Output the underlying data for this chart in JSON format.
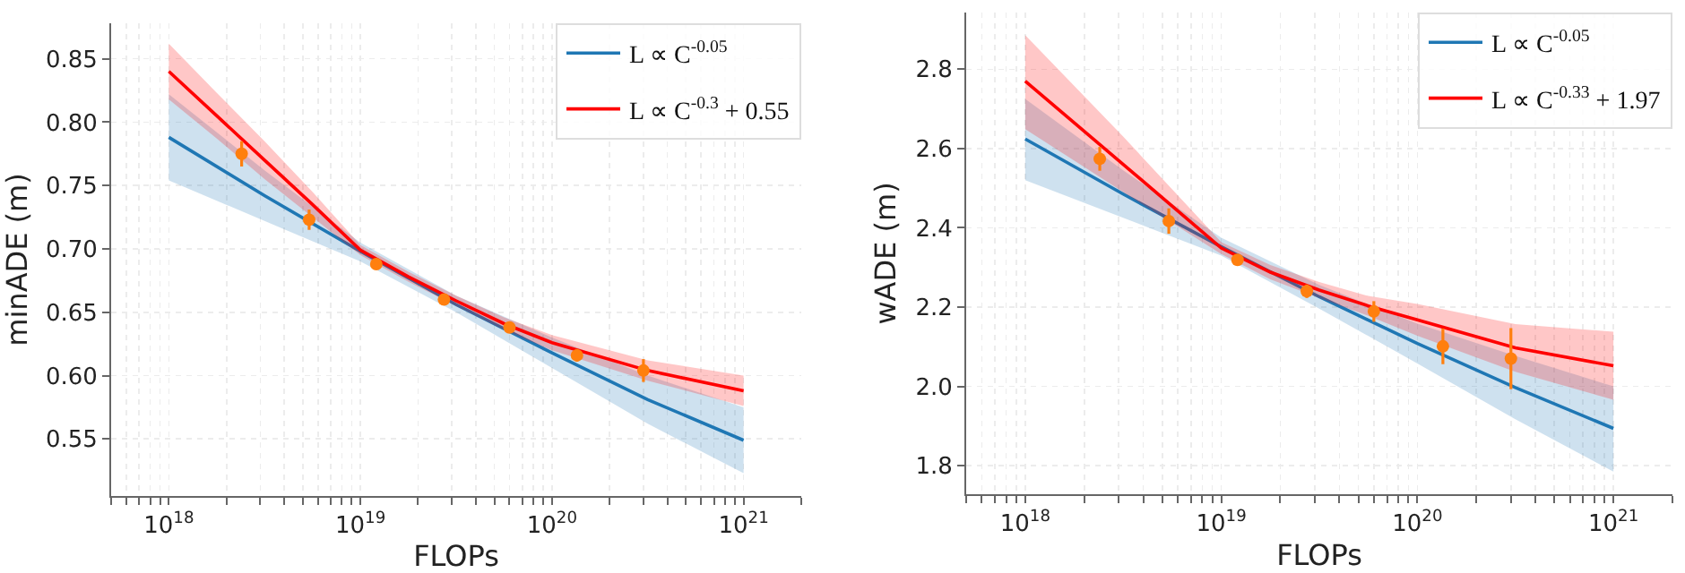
{
  "chart_data": [
    {
      "type": "line",
      "xlabel": "FLOPs",
      "ylabel": "minADE (m)",
      "log": "x",
      "grid": true,
      "legend": "top right",
      "xlim": [
        5e+17,
        2e+21
      ],
      "xticks": [
        {
          "value": 5e+17,
          "label": null
        },
        {
          "value": 6e+17,
          "label": null
        },
        {
          "value": 7e+17,
          "label": null
        },
        {
          "value": 8e+17,
          "label": null
        },
        {
          "value": 9e+17,
          "label": null
        },
        {
          "value": 1e+18,
          "label": "10$^{18}$"
        },
        {
          "value": 2e+18,
          "label": null
        },
        {
          "value": 3e+18,
          "label": null
        },
        {
          "value": 4e+18,
          "label": null
        },
        {
          "value": 5e+18,
          "label": null
        },
        {
          "value": 6e+18,
          "label": null
        },
        {
          "value": 7e+18,
          "label": null
        },
        {
          "value": 8e+18,
          "label": null
        },
        {
          "value": 9e+18,
          "label": null
        },
        {
          "value": 1e+19,
          "label": "10$^{19}$"
        },
        {
          "value": 2e+19,
          "label": null
        },
        {
          "value": 3e+19,
          "label": null
        },
        {
          "value": 4e+19,
          "label": null
        },
        {
          "value": 5e+19,
          "label": null
        },
        {
          "value": 6e+19,
          "label": null
        },
        {
          "value": 7e+19,
          "label": null
        },
        {
          "value": 8e+19,
          "label": null
        },
        {
          "value": 9e+19,
          "label": null
        },
        {
          "value": 1e+20,
          "label": "10$^{20}$"
        },
        {
          "value": 2e+20,
          "label": null
        },
        {
          "value": 3e+20,
          "label": null
        },
        {
          "value": 4e+20,
          "label": null
        },
        {
          "value": 5e+20,
          "label": null
        },
        {
          "value": 6e+20,
          "label": null
        },
        {
          "value": 7e+20,
          "label": null
        },
        {
          "value": 8e+20,
          "label": null
        },
        {
          "value": 9e+20,
          "label": null
        },
        {
          "value": 1e+21,
          "label": "10$^{21}$"
        },
        {
          "value": 2e+21,
          "label": null
        }
      ],
      "ylim": [
        0.505,
        0.878
      ],
      "yticks": [
        0.55,
        {
          "value": 0.6,
          "label": "0.60"
        },
        0.65,
        {
          "value": 0.7,
          "label": "0.70"
        },
        0.75,
        {
          "value": 0.8,
          "label": "0.80"
        },
        0.85
      ],
      "series": [
        {
          "name": "L ∝ C$^{-0.05}$",
          "color": "#1f77b4",
          "marker": "none",
          "x": [
            1e+18,
            3.16e+18,
            1e+19,
            3.16e+19,
            1e+20,
            3.16e+20,
            1e+21
          ],
          "values": [
            0.788,
            0.742,
            0.698,
            0.656,
            0.618,
            0.581,
            0.549
          ],
          "lower": [
            0.754,
            0.722,
            0.69,
            0.65,
            0.606,
            0.562,
            0.523
          ],
          "upper": [
            0.822,
            0.762,
            0.705,
            0.663,
            0.63,
            0.6,
            0.575
          ]
        },
        {
          "name": "L ∝ C$^{-0.3}$ + 0.55",
          "color": "#ff0000",
          "marker": "none",
          "x": [
            1e+18,
            1.78e+18,
            3.16e+18,
            5.62e+18,
            1e+19,
            1.78e+19,
            3.16e+19,
            5.62e+19,
            1e+20,
            3.16e+20,
            1e+21
          ],
          "values": [
            0.84,
            0.805,
            0.77,
            0.735,
            0.699,
            0.678,
            0.659,
            0.641,
            0.626,
            0.604,
            0.588
          ],
          "lower": [
            0.818,
            0.787,
            0.755,
            0.725,
            0.695,
            0.674,
            0.655,
            0.636,
            0.62,
            0.596,
            0.576
          ],
          "upper": [
            0.862,
            0.823,
            0.785,
            0.745,
            0.703,
            0.682,
            0.663,
            0.646,
            0.632,
            0.612,
            0.6
          ]
        },
        {
          "type": "scatter",
          "color": "#ff7f0e",
          "marker": "circle",
          "x": [
            2.4e+18,
            5.4e+18,
            1.21e+19,
            2.73e+19,
            6e+19,
            1.35e+20,
            3e+20
          ],
          "values": [
            0.775,
            0.723,
            0.688,
            0.66,
            0.638,
            0.616,
            0.604
          ],
          "errors": [
            0.01,
            0.008,
            0.003,
            0.002,
            0.003,
            0.005,
            0.009
          ]
        }
      ]
    },
    {
      "type": "line",
      "xlabel": "FLOPs",
      "ylabel": "wADE (m)",
      "log": "x",
      "grid": true,
      "legend": "top right",
      "xlim": [
        5e+17,
        2e+21
      ],
      "xticks": [
        {
          "value": 5e+17,
          "label": null
        },
        {
          "value": 6e+17,
          "label": null
        },
        {
          "value": 7e+17,
          "label": null
        },
        {
          "value": 8e+17,
          "label": null
        },
        {
          "value": 9e+17,
          "label": null
        },
        {
          "value": 1e+18,
          "label": "10$^{18}$"
        },
        {
          "value": 2e+18,
          "label": null
        },
        {
          "value": 3e+18,
          "label": null
        },
        {
          "value": 4e+18,
          "label": null
        },
        {
          "value": 5e+18,
          "label": null
        },
        {
          "value": 6e+18,
          "label": null
        },
        {
          "value": 7e+18,
          "label": null
        },
        {
          "value": 8e+18,
          "label": null
        },
        {
          "value": 9e+18,
          "label": null
        },
        {
          "value": 1e+19,
          "label": "10$^{19}$"
        },
        {
          "value": 2e+19,
          "label": null
        },
        {
          "value": 3e+19,
          "label": null
        },
        {
          "value": 4e+19,
          "label": null
        },
        {
          "value": 5e+19,
          "label": null
        },
        {
          "value": 6e+19,
          "label": null
        },
        {
          "value": 7e+19,
          "label": null
        },
        {
          "value": 8e+19,
          "label": null
        },
        {
          "value": 9e+19,
          "label": null
        },
        {
          "value": 1e+20,
          "label": "10$^{20}$"
        },
        {
          "value": 2e+20,
          "label": null
        },
        {
          "value": 3e+20,
          "label": null
        },
        {
          "value": 4e+20,
          "label": null
        },
        {
          "value": 5e+20,
          "label": null
        },
        {
          "value": 6e+20,
          "label": null
        },
        {
          "value": 7e+20,
          "label": null
        },
        {
          "value": 8e+20,
          "label": null
        },
        {
          "value": 9e+20,
          "label": null
        },
        {
          "value": 1e+21,
          "label": "10$^{21}$"
        },
        {
          "value": 2e+21,
          "label": null
        }
      ],
      "ylim": [
        1.728,
        2.943
      ],
      "yticks": [
        1.8,
        {
          "value": 2,
          "label": "2.0"
        },
        2.2,
        2.4,
        2.6,
        2.8
      ],
      "series": [
        {
          "name": "L ∝ C$^{-0.05}$",
          "color": "#1f77b4",
          "marker": "none",
          "x": [
            1e+18,
            3.16e+18,
            1e+19,
            3.16e+19,
            1e+20,
            3.16e+20,
            1e+21
          ],
          "values": [
            2.624,
            2.485,
            2.352,
            2.226,
            2.108,
            1.997,
            1.894
          ],
          "lower": [
            2.52,
            2.425,
            2.33,
            2.196,
            2.058,
            1.917,
            1.785
          ],
          "upper": [
            2.725,
            2.545,
            2.375,
            2.256,
            2.158,
            2.077,
            2.0
          ]
        },
        {
          "name": "L ∝ C$^{-0.33}$ + 1.97",
          "color": "#ff0000",
          "marker": "none",
          "x": [
            1e+18,
            3.16e+18,
            1e+19,
            1.78e+19,
            3.16e+19,
            5.62e+19,
            1e+20,
            3.16e+20,
            1e+21
          ],
          "values": [
            2.77,
            2.56,
            2.349,
            2.288,
            2.243,
            2.203,
            2.168,
            2.097,
            2.052
          ],
          "lower": [
            2.649,
            2.49,
            2.334,
            2.27,
            2.223,
            2.178,
            2.128,
            2.037,
            1.966
          ],
          "upper": [
            2.886,
            2.63,
            2.364,
            2.306,
            2.263,
            2.228,
            2.208,
            2.157,
            2.138
          ]
        },
        {
          "type": "scatter",
          "color": "#ff7f0e",
          "marker": "circle",
          "x": [
            2.4e+18,
            5.4e+18,
            1.21e+19,
            2.73e+19,
            6e+19,
            1.35e+20,
            3e+20
          ],
          "values": [
            2.574,
            2.417,
            2.319,
            2.24,
            2.189,
            2.101,
            2.07
          ],
          "errors": [
            0.03,
            0.032,
            0.01,
            0.017,
            0.026,
            0.045,
            0.077
          ]
        }
      ]
    }
  ]
}
